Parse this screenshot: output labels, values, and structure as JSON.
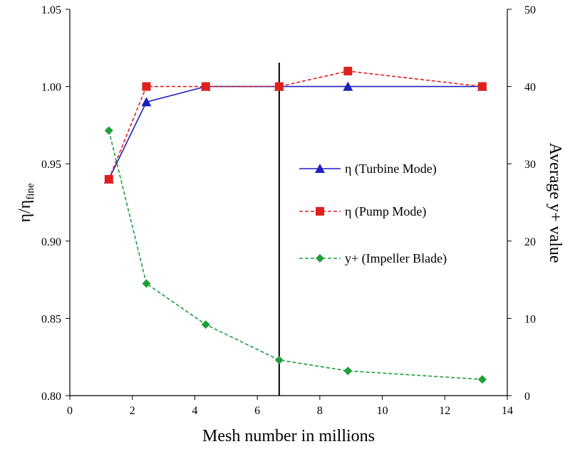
{
  "chart_data": {
    "type": "line",
    "x": [
      1.25,
      2.45,
      4.35,
      6.7,
      8.9,
      13.2
    ],
    "xlabel": "Mesh number in millions",
    "xlim": [
      0,
      14
    ],
    "xticks": [
      "0",
      "2",
      "4",
      "6",
      "8",
      "10",
      "12",
      "14"
    ],
    "ylabel_main": "η/η",
    "ylabel_sub": "fine",
    "ylim": [
      0.8,
      1.05
    ],
    "yticks": [
      "0.80",
      "0.85",
      "0.90",
      "0.95",
      "1.00",
      "1.05"
    ],
    "y2label": "Average y+ value",
    "y2lim": [
      0,
      50
    ],
    "y2ticks": [
      "0",
      "10",
      "20",
      "30",
      "40",
      "50"
    ],
    "vline_x": 6.7,
    "legend_position": "center-right",
    "series": [
      {
        "name": "η (Turbine Mode)",
        "axis": "left",
        "values": [
          0.94,
          0.99,
          1.0,
          1.0,
          1.0,
          1.0
        ],
        "color": "#1f1fbf",
        "marker": "triangle",
        "dash": "solid"
      },
      {
        "name": "η (Pump Mode)",
        "axis": "left",
        "values": [
          0.94,
          1.0,
          1.0,
          1.0,
          1.01,
          1.0
        ],
        "color": "#e0201c",
        "marker": "square",
        "dash": "dashed"
      },
      {
        "name": "y+ (Impeller Blade)",
        "axis": "right",
        "values": [
          34.3,
          14.5,
          9.2,
          4.6,
          3.2,
          2.1
        ],
        "color": "#1f9e3a",
        "marker": "diamond",
        "dash": "dashed"
      }
    ]
  }
}
